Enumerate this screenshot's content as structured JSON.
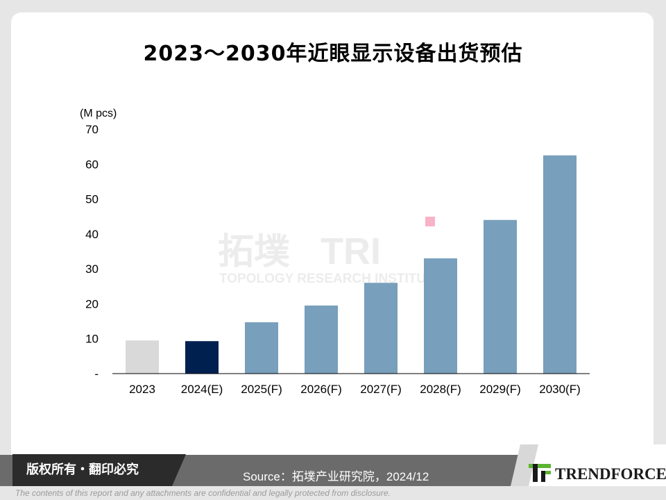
{
  "chart_data": {
    "type": "bar",
    "title": "2023～2030年近眼显示设备出货预估",
    "ylabel": "(M pcs)",
    "categories": [
      "2023",
      "2024(E)",
      "2025(F)",
      "2026(F)",
      "2027(F)",
      "2028(F)",
      "2029(F)",
      "2030(F)"
    ],
    "values": [
      9.5,
      9.3,
      14.7,
      19.5,
      26,
      33,
      44,
      62.5
    ],
    "ylim": [
      0,
      70
    ],
    "yticks": [
      "-",
      "10",
      "20",
      "30",
      "40",
      "50",
      "60",
      "70"
    ],
    "bar_colors": [
      "#d9d9d9",
      "#002050",
      "#789fbc",
      "#789fbc",
      "#789fbc",
      "#789fbc",
      "#789fbc",
      "#789fbc"
    ],
    "grid": false,
    "legend": "none"
  },
  "watermark": {
    "cn": "拓墣",
    "big": "TRI",
    "en": "TOPOLOGY RESEARCH INSTITUTE"
  },
  "footer": {
    "copyright": "版权所有・翻印必究",
    "source": "Source：拓墣产业研究院，2024/12",
    "logo_text": "TRENDFORCE",
    "disclaimer": "The contents of this report and any attachments are confidential and legally protected from disclosure."
  },
  "colors": {
    "accent_green": "#5cb531",
    "footer_dark": "#2b2b2b",
    "footer_gray": "#6b6b6b"
  }
}
